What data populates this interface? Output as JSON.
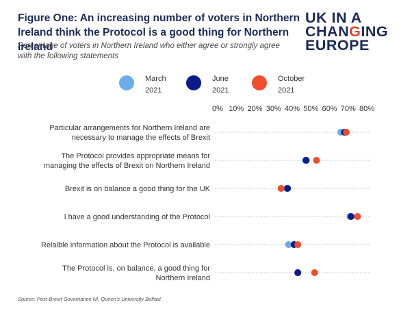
{
  "title": {
    "line1": "Figure One: An increasing number of voters in Northern",
    "line2": "Ireland think the Protocol is a good thing for Northern Ireland"
  },
  "subtitle": {
    "line1": "Percentage of voters in Northern Ireland who either agree or strongly agree",
    "line2": "with the following statements"
  },
  "logo": {
    "line1": "UK IN A",
    "line2_a": "CHAN",
    "line2_b": "G",
    "line2_c": "ING",
    "line3": "EUROPE",
    "accent_color": "#e8402a",
    "main_color": "#1b2a5a"
  },
  "source": "Source: Post-Brexit Governance NI, Queen's University Belfast",
  "chart_data": {
    "type": "scatter",
    "xlim": [
      0,
      80
    ],
    "x_ticks": [
      "0%",
      "10%",
      "20%",
      "30%",
      "40%",
      "50%",
      "60%",
      "70%",
      "80%"
    ],
    "x_tick_values": [
      0,
      10,
      20,
      30,
      40,
      50,
      60,
      70,
      80
    ],
    "grid": "horizontal dotted",
    "legend_position": "top",
    "categories": [
      [
        "Particular arrangements for Northern Ireland are",
        "necessary to manage the effects of Brexit"
      ],
      [
        "The Protocol provides appropriate means for",
        "managing the effects of Brexit on Northern Ireland"
      ],
      [
        "Brexit is on balance a good thing for the UK"
      ],
      [
        "I have a good understanding of the Protocol"
      ],
      [
        "Relaible information about the Protocol is available"
      ],
      [
        "The Protocol is, on balance, a good thing for",
        "Northern Ireland"
      ]
    ],
    "series": [
      {
        "name": "March",
        "year": "2021",
        "color": "#6aaee9",
        "values": [
          66,
          47,
          37,
          71,
          38,
          43
        ]
      },
      {
        "name": "June",
        "year": "2021",
        "color": "#0b1b8a",
        "values": [
          68,
          47.5,
          37.5,
          71.5,
          41,
          43
        ]
      },
      {
        "name": "October",
        "year": "2021",
        "color": "#f04e2a",
        "values": [
          69,
          53,
          34,
          75,
          43,
          52
        ]
      }
    ]
  }
}
